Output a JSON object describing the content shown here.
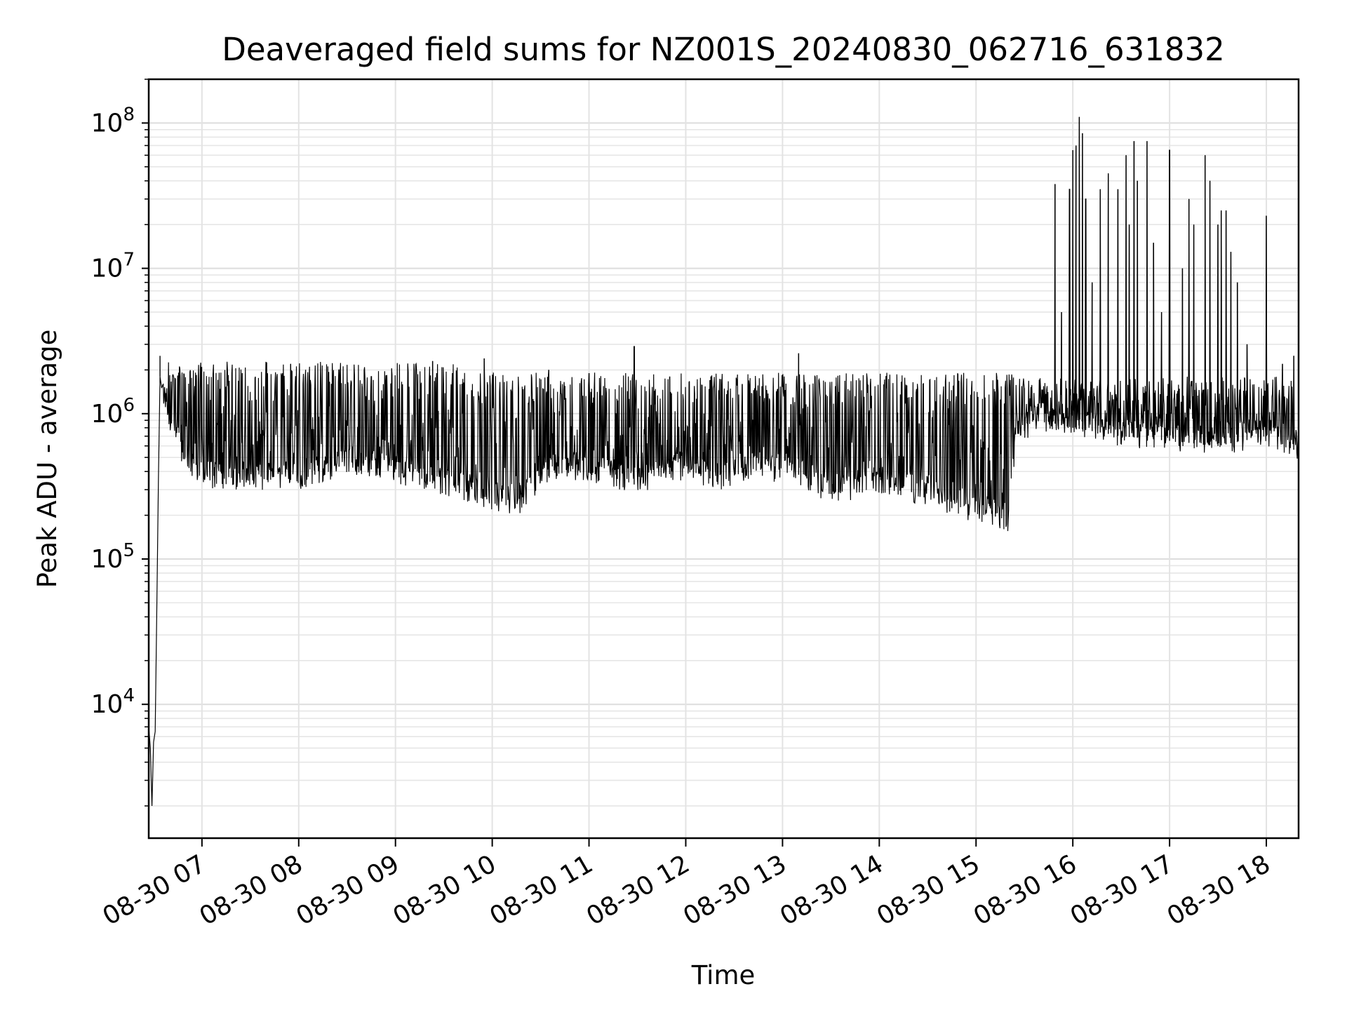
{
  "chart_data": {
    "type": "line",
    "title": "Deaveraged field sums for NZ001S_20240830_062716_631832",
    "xlabel": "Time",
    "ylabel": "Peak ADU - average",
    "yscale": "log",
    "ylim": [
      1200,
      200000000
    ],
    "xlim": [
      "2024-08-30 06:27",
      "2024-08-30 18:20"
    ],
    "grid": true,
    "legend": "none",
    "line_color": "#000000",
    "x_ticks": [
      {
        "t": "2024-08-30 07:00",
        "label": "08-30 07"
      },
      {
        "t": "2024-08-30 08:00",
        "label": "08-30 08"
      },
      {
        "t": "2024-08-30 09:00",
        "label": "08-30 09"
      },
      {
        "t": "2024-08-30 10:00",
        "label": "08-30 10"
      },
      {
        "t": "2024-08-30 11:00",
        "label": "08-30 11"
      },
      {
        "t": "2024-08-30 12:00",
        "label": "08-30 12"
      },
      {
        "t": "2024-08-30 13:00",
        "label": "08-30 13"
      },
      {
        "t": "2024-08-30 14:00",
        "label": "08-30 14"
      },
      {
        "t": "2024-08-30 15:00",
        "label": "08-30 15"
      },
      {
        "t": "2024-08-30 16:00",
        "label": "08-30 16"
      },
      {
        "t": "2024-08-30 17:00",
        "label": "08-30 17"
      },
      {
        "t": "2024-08-30 18:00",
        "label": "08-30 18"
      }
    ],
    "y_ticks": [
      {
        "value": 10000,
        "base": "10",
        "exp": "4"
      },
      {
        "value": 100000,
        "base": "10",
        "exp": "5"
      },
      {
        "value": 1000000,
        "base": "10",
        "exp": "6"
      },
      {
        "value": 10000000,
        "base": "10",
        "exp": "7"
      },
      {
        "value": 100000000,
        "base": "10",
        "exp": "8"
      }
    ],
    "series": [
      {
        "points": [
          [
            "2024-08-30 06:27",
            7000
          ],
          [
            "2024-08-30 06:28",
            5000
          ],
          [
            "2024-08-30 06:29",
            2000
          ],
          [
            "2024-08-30 06:30",
            5500
          ],
          [
            "2024-08-30 06:31",
            6500
          ],
          [
            "2024-08-30 06:32",
            45000
          ],
          [
            "2024-08-30 06:33",
            350000
          ],
          [
            "2024-08-30 06:34",
            1800000
          ],
          [
            "2024-08-30 06:35",
            1500000
          ],
          [
            "2024-08-30 06:38",
            1000000
          ],
          [
            "2024-08-30 06:45",
            600000
          ],
          [
            "2024-08-30 06:55",
            400000
          ],
          [
            "2024-08-30 07:10",
            350000
          ],
          [
            "2024-08-30 08:00",
            350000
          ],
          [
            "2024-08-30 08:30",
            450000
          ],
          [
            "2024-08-30 09:00",
            380000
          ],
          [
            "2024-08-30 09:40",
            300000
          ],
          [
            "2024-08-30 10:15",
            230000
          ],
          [
            "2024-08-30 10:40",
            420000
          ],
          [
            "2024-08-30 11:10",
            380000
          ],
          [
            "2024-08-30 11:30",
            320000
          ],
          [
            "2024-08-30 12:00",
            420000
          ],
          [
            "2024-08-30 12:20",
            340000
          ],
          [
            "2024-08-30 12:40",
            410000
          ],
          [
            "2024-08-30 13:10",
            380000
          ],
          [
            "2024-08-30 13:30",
            280000
          ],
          [
            "2024-08-30 14:00",
            330000
          ],
          [
            "2024-08-30 14:30",
            270000
          ],
          [
            "2024-08-30 14:50",
            210000
          ],
          [
            "2024-08-30 15:10",
            200000
          ],
          [
            "2024-08-30 15:20",
            180000
          ],
          [
            "2024-08-30 15:25",
            700000
          ],
          [
            "2024-08-30 15:40",
            900000
          ],
          [
            "2024-08-30 16:00",
            800000
          ],
          [
            "2024-08-30 16:30",
            700000
          ],
          [
            "2024-08-30 17:00",
            650000
          ],
          [
            "2024-08-30 17:30",
            600000
          ],
          [
            "2024-08-30 18:00",
            700000
          ],
          [
            "2024-08-30 18:19",
            550000
          ]
        ],
        "spikes": [
          [
            "2024-08-30 06:34",
            2500000
          ],
          [
            "2024-08-30 07:25",
            1900000
          ],
          [
            "2024-08-30 07:55",
            2200000
          ],
          [
            "2024-08-30 08:10",
            1500000
          ],
          [
            "2024-08-30 08:25",
            2000000
          ],
          [
            "2024-08-30 08:45",
            1800000
          ],
          [
            "2024-08-30 09:23",
            2300000
          ],
          [
            "2024-08-30 09:55",
            2400000
          ],
          [
            "2024-08-30 10:35",
            2000000
          ],
          [
            "2024-08-30 11:00",
            1900000
          ],
          [
            "2024-08-30 11:28",
            2900000
          ],
          [
            "2024-08-30 11:50",
            1800000
          ],
          [
            "2024-08-30 12:15",
            1700000
          ],
          [
            "2024-08-30 12:35",
            1600000
          ],
          [
            "2024-08-30 13:10",
            2600000
          ],
          [
            "2024-08-30 13:35",
            1400000
          ],
          [
            "2024-08-30 13:37",
            1200000
          ],
          [
            "2024-08-30 14:20",
            1300000
          ],
          [
            "2024-08-30 14:45",
            900000
          ],
          [
            "2024-08-30 15:12",
            1100000
          ],
          [
            "2024-08-30 15:30",
            1500000
          ],
          [
            "2024-08-30 15:49",
            38000000
          ],
          [
            "2024-08-30 15:53",
            5000000
          ],
          [
            "2024-08-30 15:58",
            35000000
          ],
          [
            "2024-08-30 16:00",
            65000000
          ],
          [
            "2024-08-30 16:02",
            70000000
          ],
          [
            "2024-08-30 16:04",
            110000000
          ],
          [
            "2024-08-30 16:06",
            85000000
          ],
          [
            "2024-08-30 16:08",
            30000000
          ],
          [
            "2024-08-30 16:12",
            8000000
          ],
          [
            "2024-08-30 16:17",
            35000000
          ],
          [
            "2024-08-30 16:22",
            45000000
          ],
          [
            "2024-08-30 16:28",
            35000000
          ],
          [
            "2024-08-30 16:33",
            60000000
          ],
          [
            "2024-08-30 16:35",
            20000000
          ],
          [
            "2024-08-30 16:38",
            75000000
          ],
          [
            "2024-08-30 16:40",
            40000000
          ],
          [
            "2024-08-30 16:46",
            75000000
          ],
          [
            "2024-08-30 16:50",
            15000000
          ],
          [
            "2024-08-30 16:55",
            5000000
          ],
          [
            "2024-08-30 17:00",
            65000000
          ],
          [
            "2024-08-30 17:08",
            10000000
          ],
          [
            "2024-08-30 17:12",
            30000000
          ],
          [
            "2024-08-30 17:15",
            20000000
          ],
          [
            "2024-08-30 17:22",
            60000000
          ],
          [
            "2024-08-30 17:25",
            40000000
          ],
          [
            "2024-08-30 17:30",
            20000000
          ],
          [
            "2024-08-30 17:32",
            25000000
          ],
          [
            "2024-08-30 17:35",
            25000000
          ],
          [
            "2024-08-30 17:38",
            13000000
          ],
          [
            "2024-08-30 17:42",
            8000000
          ],
          [
            "2024-08-30 17:48",
            3000000
          ],
          [
            "2024-08-30 18:00",
            23000000
          ],
          [
            "2024-08-30 18:10",
            2200000
          ],
          [
            "2024-08-30 18:17",
            2500000
          ]
        ]
      }
    ]
  }
}
